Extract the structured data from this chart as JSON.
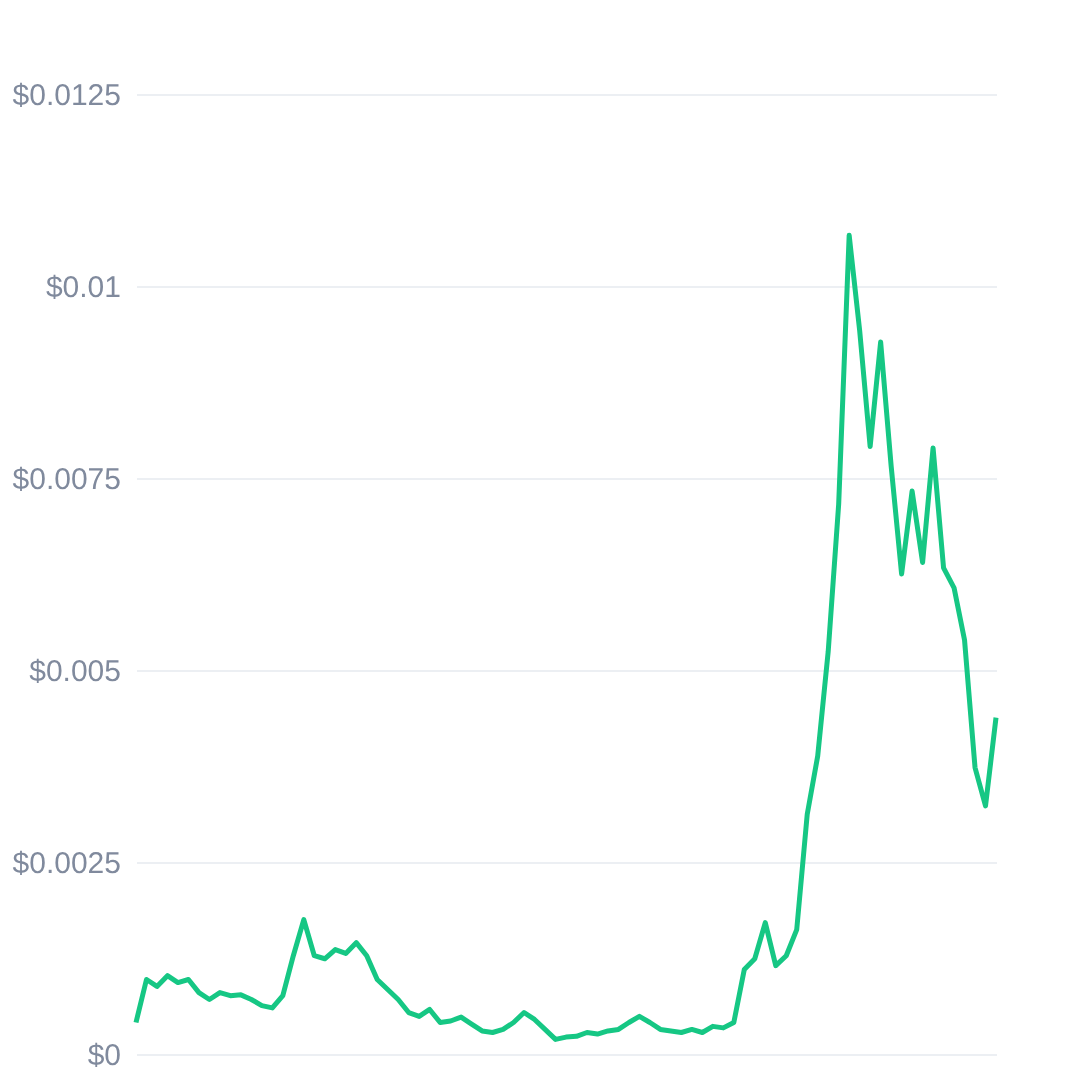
{
  "chart_data": {
    "type": "line",
    "categories": [
      null,
      null,
      null,
      null,
      null,
      null,
      null,
      null,
      null,
      null,
      null,
      null,
      null,
      null,
      null,
      null,
      null,
      null,
      null,
      null,
      null,
      null,
      null,
      null,
      null,
      null,
      null,
      null,
      null,
      null,
      null,
      null,
      null,
      null,
      null,
      null,
      null,
      null,
      null,
      null,
      null,
      null,
      null,
      null,
      null,
      null,
      null,
      null,
      null,
      null,
      null,
      null,
      null,
      null,
      null,
      null,
      null,
      null,
      null,
      null,
      null,
      null,
      null,
      null,
      null,
      null,
      null,
      null,
      null,
      null,
      null,
      null,
      null,
      null,
      null,
      null,
      null,
      null,
      null,
      null,
      null,
      null,
      null
    ],
    "series": [
      {
        "color": "#16c784",
        "values": [
          0.00041,
          0.00097,
          0.00088,
          0.00102,
          0.00093,
          0.00097,
          0.0008,
          0.00071,
          0.0008,
          0.00076,
          0.00077,
          0.00071,
          0.00063,
          0.0006,
          0.00076,
          0.00128,
          0.00175,
          0.00128,
          0.00124,
          0.00136,
          0.00131,
          0.00145,
          0.00128,
          0.00097,
          0.00084,
          0.00071,
          0.00054,
          0.00049,
          0.00058,
          0.00041,
          0.00043,
          0.00048,
          0.00039,
          0.0003,
          0.00028,
          0.00032,
          0.00041,
          0.00054,
          0.00045,
          0.00032,
          0.00019,
          0.00022,
          0.00023,
          0.00028,
          0.00026,
          0.0003,
          0.00032,
          0.00041,
          0.00049,
          0.00041,
          0.00032,
          0.0003,
          0.00028,
          0.00032,
          0.00028,
          0.00036,
          0.00034,
          0.00041,
          0.0011,
          0.00124,
          0.00171,
          0.00115,
          0.00128,
          0.00162,
          0.00312,
          0.00388,
          0.00524,
          0.00716,
          0.01066,
          0.00942,
          0.00791,
          0.00927,
          0.00766,
          0.00625,
          0.00733,
          0.0064,
          0.00789,
          0.00633,
          0.00607,
          0.00539,
          0.00373,
          0.00323,
          0.00438
        ]
      }
    ],
    "ylim": [
      0,
      0.0125
    ],
    "yticks": [
      {
        "value": 0,
        "label": "$0"
      },
      {
        "value": 0.0025,
        "label": "$0.0025"
      },
      {
        "value": 0.005,
        "label": "$0.005"
      },
      {
        "value": 0.0075,
        "label": "$0.0075"
      },
      {
        "value": 0.01,
        "label": "$0.01"
      },
      {
        "value": 0.0125,
        "label": "$0.0125"
      }
    ],
    "grid": "y",
    "tick_labels": "y",
    "line_style": "solid",
    "marker": "none"
  }
}
